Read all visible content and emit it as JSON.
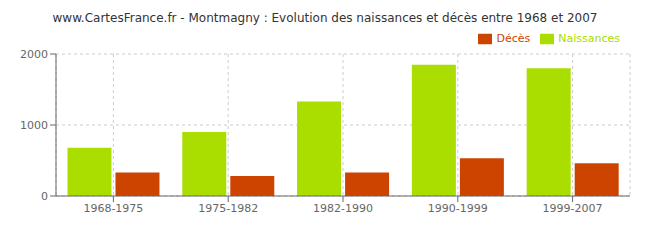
{
  "chart_data": {
    "type": "bar",
    "title": "www.CartesFrance.fr - Montmagny : Evolution des naissances et décès entre 1968 et 2007",
    "categories": [
      "1968-1975",
      "1975-1982",
      "1982-1990",
      "1990-1999",
      "1999-2007"
    ],
    "series": [
      {
        "name": "Naissances",
        "color": "#aadd00",
        "values": [
          680,
          900,
          1330,
          1850,
          1800
        ]
      },
      {
        "name": "Décès",
        "color": "#cc4400",
        "values": [
          330,
          280,
          330,
          530,
          460
        ]
      }
    ],
    "ylim": [
      0,
      2000
    ],
    "yticks": [
      0,
      1000,
      2000
    ],
    "grid": true,
    "legend": "upper right"
  }
}
